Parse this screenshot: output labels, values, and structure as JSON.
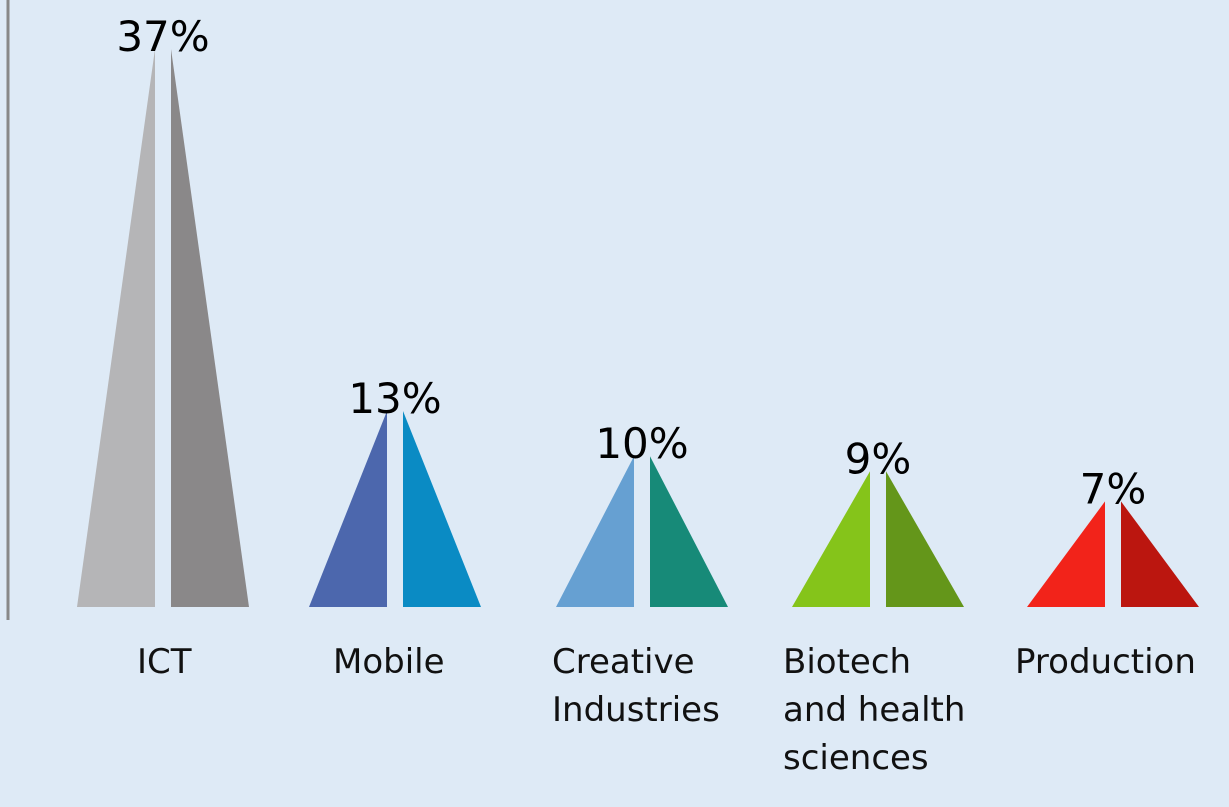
{
  "chart_data": {
    "type": "triangle",
    "categories": [
      "ICT",
      "Mobile",
      "Creative Industries",
      "Biotech and health sciences",
      "Production"
    ],
    "values": [
      37,
      13,
      10,
      9,
      7
    ],
    "value_labels": [
      "37%",
      "13%",
      "10%",
      "9%",
      "7%"
    ],
    "colors": [
      [
        "#b5b5b7",
        "#8a8889"
      ],
      [
        "#4c67ad",
        "#0a8bc4"
      ],
      [
        "#66a0d2",
        "#178a78"
      ],
      [
        "#85c41a",
        "#64961a"
      ],
      [
        "#f2231a",
        "#bb160f"
      ]
    ]
  }
}
